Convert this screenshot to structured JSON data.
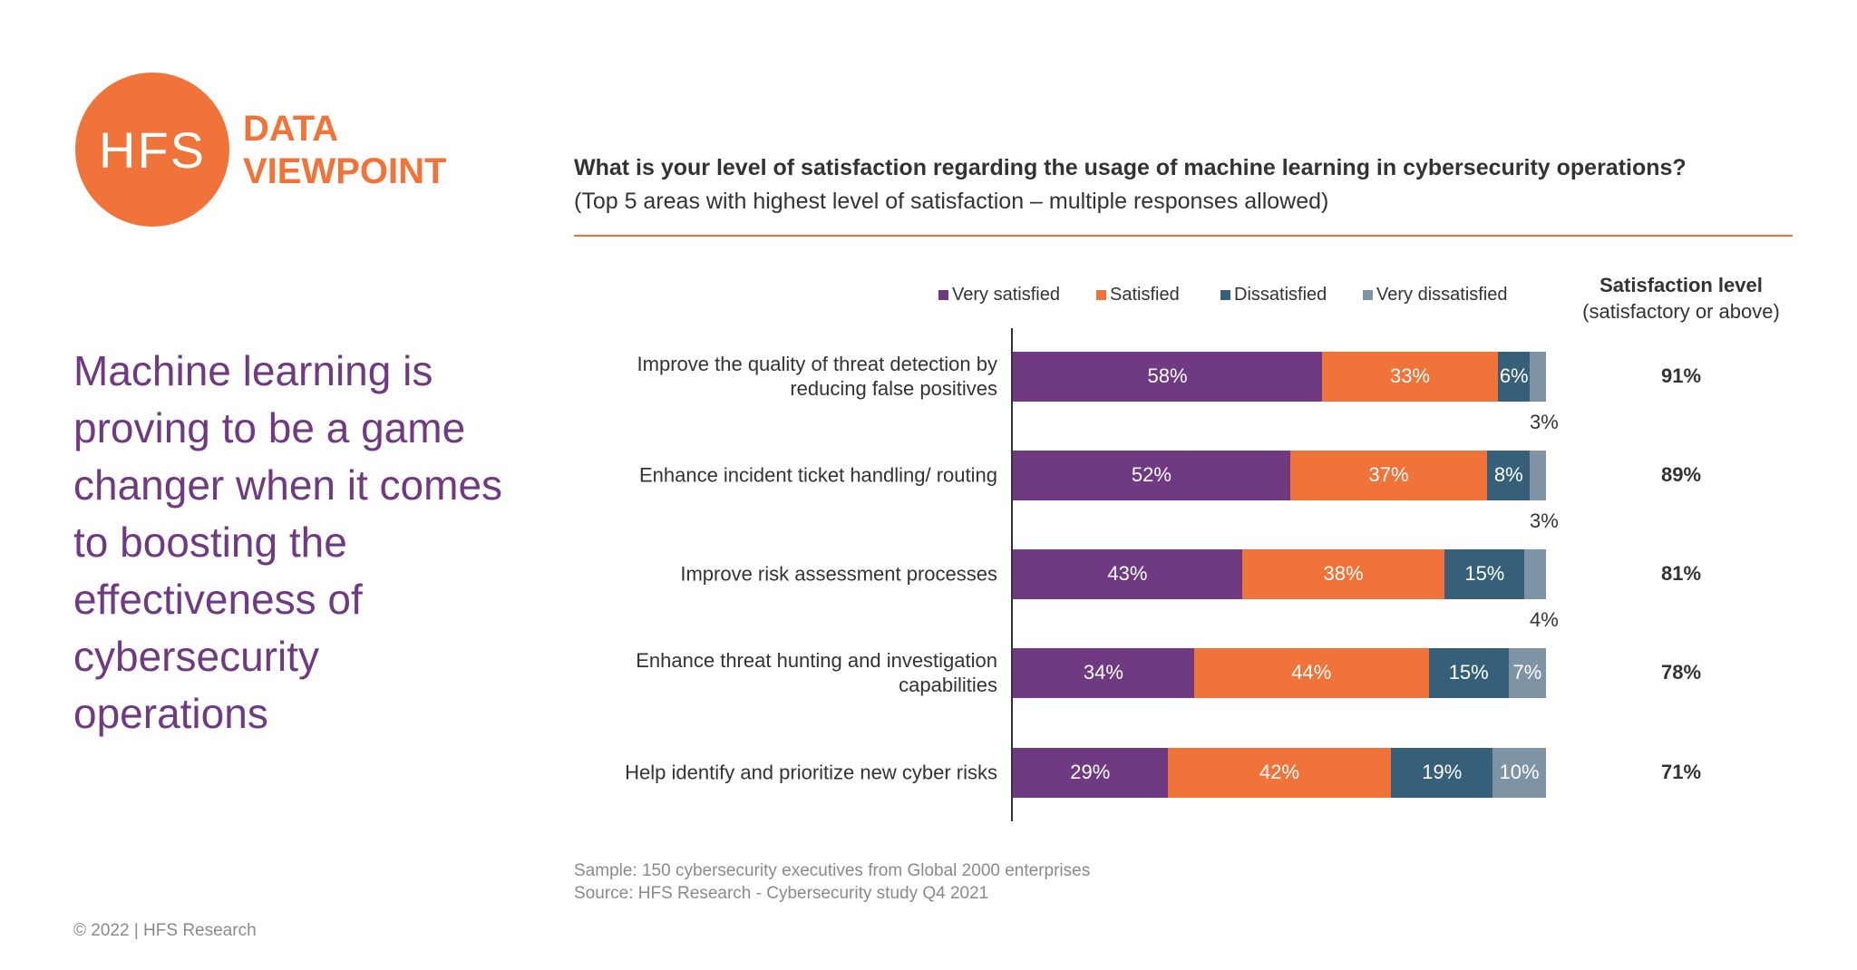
{
  "logo": {
    "mark": "HFS",
    "line1": "DATA",
    "line2": "VIEWPOINT"
  },
  "headline": "Machine learning is proving to be a game changer when it comes to boosting the effectiveness of cybersecurity operations",
  "footer": {
    "sample": "Sample: 150 cybersecurity executives from Global 2000 enterprises",
    "source": "Source: HFS Research - Cybersecurity study Q4 2021",
    "copyright": "© 2022 | HFS Research"
  },
  "colors": {
    "very_satisfied": "#6F3A81",
    "satisfied": "#F0733A",
    "dissatisfied": "#365F79",
    "very_dissatisfied": "#7E93A3",
    "accent": "#F0743A"
  },
  "chart_data": {
    "type": "bar",
    "orientation": "horizontal-stacked",
    "title": "What is your level of satisfaction regarding the usage of machine learning in cybersecurity operations?",
    "subtitle": "(Top 5 areas with highest level of satisfaction – multiple responses allowed)",
    "legend_position": "top",
    "categories": [
      "Improve the quality of threat detection by reducing false positives",
      "Enhance incident ticket handling/ routing",
      "Improve risk assessment processes",
      "Enhance threat hunting and investigation capabilities",
      "Help identify and prioritize new cyber risks"
    ],
    "series": [
      {
        "name": "Very satisfied",
        "values": [
          58,
          52,
          43,
          34,
          29
        ],
        "labels": [
          "58%",
          "52%",
          "43%",
          "34%",
          "29%"
        ]
      },
      {
        "name": "Satisfied",
        "values": [
          33,
          37,
          38,
          44,
          42
        ],
        "labels": [
          "33%",
          "37%",
          "38%",
          "44%",
          "42%"
        ]
      },
      {
        "name": "Dissatisfied",
        "values": [
          6,
          8,
          15,
          15,
          19
        ],
        "labels": [
          "6%",
          "8%",
          "15%",
          "15%",
          "19%"
        ]
      },
      {
        "name": "Very dissatisfied",
        "values": [
          3,
          3,
          4,
          7,
          10
        ],
        "labels": [
          "3%",
          "3%",
          "4%",
          "7%",
          "10%"
        ]
      }
    ],
    "satisfaction": {
      "header": "Satisfaction level",
      "subheader": "(satisfactory or above)",
      "values": [
        "91%",
        "89%",
        "81%",
        "78%",
        "71%"
      ]
    }
  }
}
